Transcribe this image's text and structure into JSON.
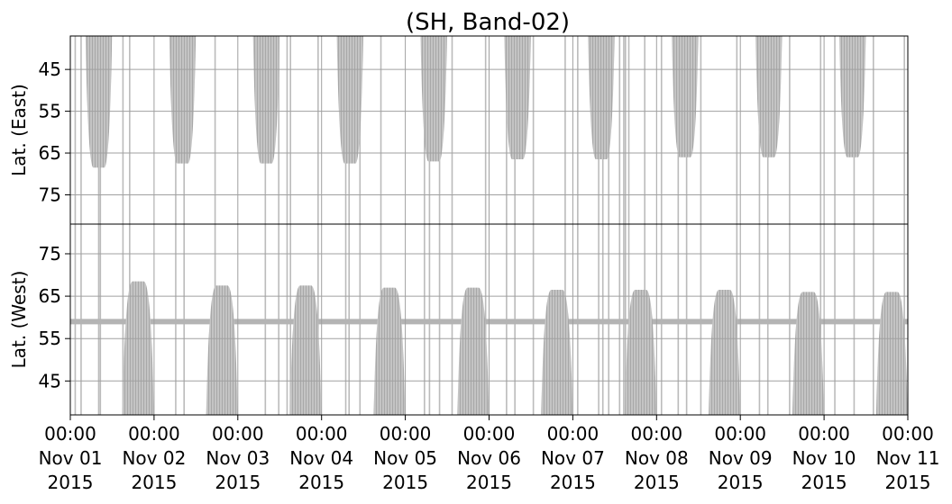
{
  "chart_data": {
    "type": "heatmap",
    "title": "(SH, Band-02)",
    "grid": true,
    "color": "#b4b4b4",
    "x_ticks": [
      {
        "time": "00:00",
        "day": "Nov 01",
        "year": "2015"
      },
      {
        "time": "00:00",
        "day": "Nov 02",
        "year": "2015"
      },
      {
        "time": "00:00",
        "day": "Nov 03",
        "year": "2015"
      },
      {
        "time": "00:00",
        "day": "Nov 04",
        "year": "2015"
      },
      {
        "time": "00:00",
        "day": "Nov 05",
        "year": "2015"
      },
      {
        "time": "00:00",
        "day": "Nov 06",
        "year": "2015"
      },
      {
        "time": "00:00",
        "day": "Nov 07",
        "year": "2015"
      },
      {
        "time": "00:00",
        "day": "Nov 08",
        "year": "2015"
      },
      {
        "time": "00:00",
        "day": "Nov 09",
        "year": "2015"
      },
      {
        "time": "00:00",
        "day": "Nov 10",
        "year": "2015"
      },
      {
        "time": "00:00",
        "day": "Nov 11",
        "year": "2015"
      }
    ],
    "xlim": [
      "2015-11-01 00:00",
      "2015-11-11 00:00"
    ],
    "panels": [
      {
        "name": "east",
        "ylabel": "Lat. (East)",
        "yticks": [
          45,
          55,
          65,
          75
        ],
        "ylim": [
          37,
          82
        ],
        "inverted": true,
        "lobes": [
          {
            "start": 0.18,
            "end": 0.5,
            "peak_lat": 68.5
          },
          {
            "start": 1.18,
            "end": 1.5,
            "peak_lat": 67.5
          },
          {
            "start": 2.18,
            "end": 2.5,
            "peak_lat": 67.5
          },
          {
            "start": 3.18,
            "end": 3.5,
            "peak_lat": 67.5
          },
          {
            "start": 4.18,
            "end": 4.5,
            "peak_lat": 67.0
          },
          {
            "start": 5.18,
            "end": 5.5,
            "peak_lat": 66.5
          },
          {
            "start": 6.18,
            "end": 6.5,
            "peak_lat": 66.5
          },
          {
            "start": 7.18,
            "end": 7.5,
            "peak_lat": 66.0
          },
          {
            "start": 8.18,
            "end": 8.5,
            "peak_lat": 66.0
          },
          {
            "start": 9.18,
            "end": 9.5,
            "peak_lat": 66.0
          }
        ]
      },
      {
        "name": "west",
        "ylabel": "Lat. (West)",
        "yticks": [
          75,
          65,
          55,
          45
        ],
        "ylim": [
          37,
          82
        ],
        "inverted": false,
        "band_lat": 59,
        "lobes": [
          {
            "start": 0.62,
            "end": 1.0,
            "peak_lat": 68.5
          },
          {
            "start": 1.62,
            "end": 2.0,
            "peak_lat": 67.5
          },
          {
            "start": 2.62,
            "end": 3.0,
            "peak_lat": 67.5
          },
          {
            "start": 3.62,
            "end": 4.0,
            "peak_lat": 67.0
          },
          {
            "start": 4.62,
            "end": 5.0,
            "peak_lat": 67.0
          },
          {
            "start": 5.62,
            "end": 6.0,
            "peak_lat": 66.5
          },
          {
            "start": 6.62,
            "end": 7.0,
            "peak_lat": 66.5
          },
          {
            "start": 7.62,
            "end": 8.0,
            "peak_lat": 66.5
          },
          {
            "start": 8.62,
            "end": 9.0,
            "peak_lat": 66.0
          },
          {
            "start": 9.62,
            "end": 10.0,
            "peak_lat": 66.0
          }
        ]
      }
    ],
    "vertical_streaks": [
      0.05,
      0.12,
      0.33,
      0.35,
      0.62,
      0.7,
      1.25,
      1.35,
      1.72,
      2.32,
      2.48,
      2.58,
      2.62,
      2.95,
      3.28,
      3.32,
      3.45,
      3.7,
      4.22,
      4.28,
      4.4,
      4.55,
      4.95,
      5.2,
      5.3,
      5.52,
      5.9,
      6.05,
      6.3,
      6.35,
      6.42,
      6.55,
      6.6,
      6.62,
      6.66,
      6.85,
      7.05,
      7.25,
      7.35,
      7.52,
      7.95,
      8.22,
      8.32,
      8.58,
      8.95,
      9.12,
      9.35,
      9.58,
      9.95
    ]
  }
}
